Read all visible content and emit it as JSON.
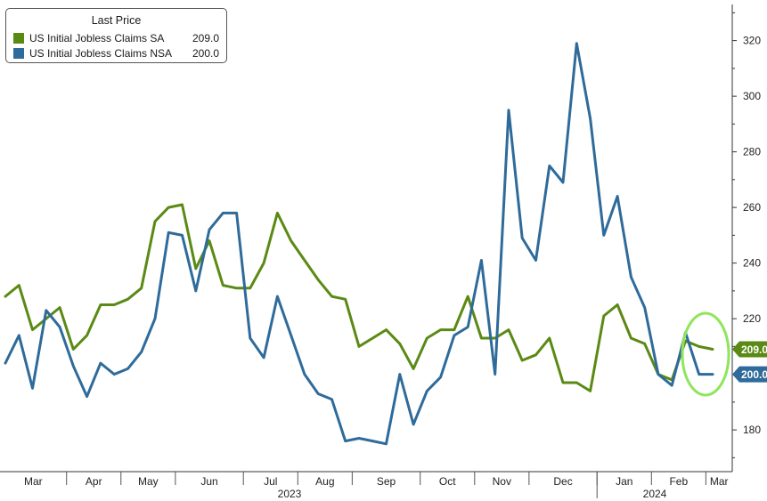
{
  "colors": {
    "sa": "#5a8a14",
    "nsa": "#2f6b9a",
    "highlight": "#8ee65a",
    "axis": "#333333"
  },
  "chart_data": {
    "type": "line",
    "legend": {
      "title": "Last Price",
      "placement": "top-left"
    },
    "ylim": [
      165,
      333
    ],
    "y_ticks": [
      180,
      200,
      220,
      240,
      260,
      280,
      300,
      320
    ],
    "y_axis_side": "right",
    "grid": false,
    "x_month_labels": [
      "Mar",
      "Apr",
      "May",
      "Jun",
      "Jul",
      "Aug",
      "Sep",
      "Oct",
      "Nov",
      "Dec",
      "Jan",
      "Feb",
      "Mar"
    ],
    "x_year_labels": [
      "2023",
      "2024"
    ],
    "x": [
      "2023-03-03",
      "2023-03-10",
      "2023-03-17",
      "2023-03-24",
      "2023-03-31",
      "2023-04-07",
      "2023-04-14",
      "2023-04-21",
      "2023-04-28",
      "2023-05-05",
      "2023-05-12",
      "2023-05-19",
      "2023-05-26",
      "2023-06-02",
      "2023-06-09",
      "2023-06-16",
      "2023-06-23",
      "2023-06-30",
      "2023-07-07",
      "2023-07-14",
      "2023-07-21",
      "2023-07-28",
      "2023-08-04",
      "2023-08-11",
      "2023-08-18",
      "2023-08-25",
      "2023-09-01",
      "2023-09-08",
      "2023-09-15",
      "2023-09-22",
      "2023-09-29",
      "2023-10-06",
      "2023-10-13",
      "2023-10-20",
      "2023-10-27",
      "2023-11-03",
      "2023-11-10",
      "2023-11-17",
      "2023-11-24",
      "2023-12-01",
      "2023-12-08",
      "2023-12-15",
      "2023-12-22",
      "2023-12-29",
      "2024-01-05",
      "2024-01-12",
      "2024-01-19",
      "2024-01-26",
      "2024-02-02",
      "2024-02-09",
      "2024-02-16",
      "2024-02-23",
      "2024-03-01"
    ],
    "series": [
      {
        "name": "US Initial Jobless Claims SA",
        "last": "209.0",
        "values": [
          228,
          232,
          216,
          220,
          224,
          209,
          214,
          225,
          225,
          227,
          231,
          255,
          260,
          261,
          238,
          248,
          232,
          231,
          231,
          240,
          258,
          248,
          241,
          234,
          228,
          227,
          210,
          213,
          216,
          211,
          202,
          213,
          216,
          216,
          228,
          213,
          213,
          216,
          205,
          207,
          213,
          197,
          197,
          194,
          221,
          225,
          213,
          211,
          200,
          198,
          212,
          210,
          209
        ]
      },
      {
        "name": "US Initial Jobless Claims NSA",
        "last": "200.0",
        "values": [
          204,
          214,
          195,
          223,
          217,
          203,
          192,
          204,
          200,
          202,
          208,
          220,
          251,
          250,
          230,
          252,
          258,
          258,
          213,
          206,
          228,
          214,
          200,
          193,
          191,
          176,
          177,
          176,
          175,
          200,
          182,
          194,
          199,
          214,
          217,
          241,
          200,
          295,
          249,
          241,
          275,
          269,
          319,
          292,
          250,
          264,
          235,
          224,
          200,
          196,
          215,
          200,
          200
        ]
      }
    ],
    "annotations": [
      {
        "type": "circle",
        "label": ""
      }
    ]
  }
}
